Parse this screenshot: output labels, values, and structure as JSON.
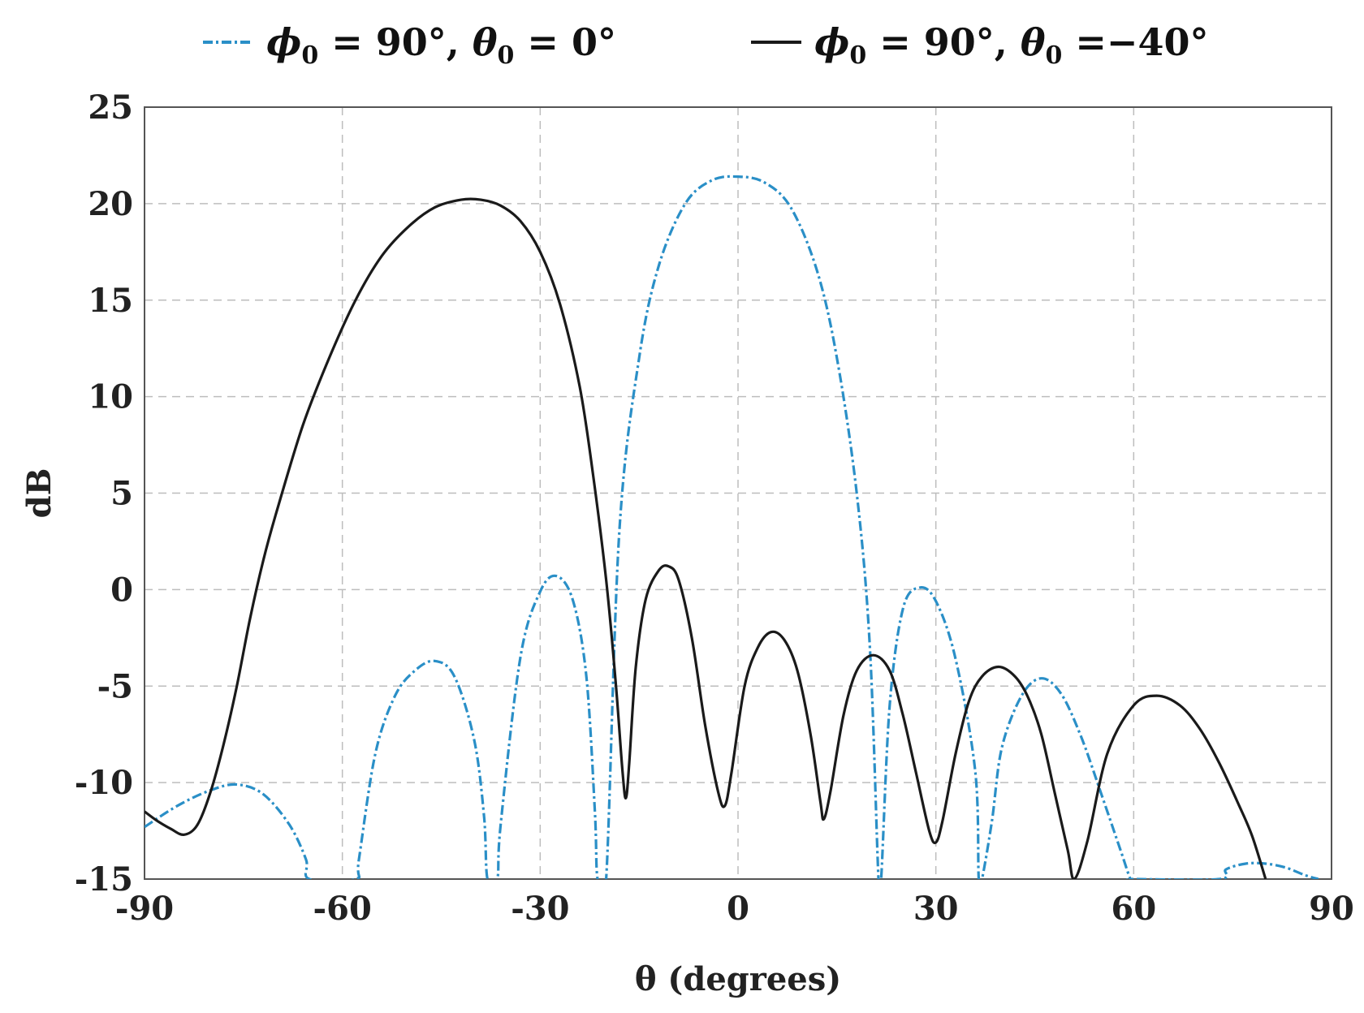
{
  "chart_data": {
    "type": "line",
    "xlabel": "θ (degrees)",
    "ylabel": "dB",
    "xlim": [
      -90,
      90
    ],
    "ylim": [
      -15,
      25
    ],
    "xticks": [
      -90,
      -60,
      -30,
      0,
      30,
      60,
      90
    ],
    "yticks": [
      25,
      20,
      15,
      10,
      5,
      0,
      -5,
      -10,
      -15
    ],
    "grid": true,
    "legend_position": "top",
    "series": [
      {
        "name": "ϕ0 = 90°, θ0 = 0°",
        "legend_parts": [
          "ϕ",
          "0",
          " = 90°, ",
          "θ",
          "0",
          " = 0°"
        ],
        "color": "#2a8fc7",
        "linestyle": "dash-dot",
        "x": [
          -90,
          -85,
          -80,
          -76,
          -72,
          -68,
          -65.5,
          -65,
          -58,
          -57.5,
          -55,
          -52,
          -49,
          -46,
          -43,
          -40,
          -38.5,
          -38,
          -36.5,
          -36,
          -33,
          -30,
          -27.5,
          -25,
          -23,
          -21.7,
          -21.3,
          -20,
          -18,
          -15,
          -12,
          -8,
          -4,
          0,
          4,
          8,
          12,
          15,
          18,
          20,
          21.3,
          21.7,
          23,
          25,
          27.5,
          30,
          33,
          36,
          36.5,
          37,
          38.5,
          40,
          43,
          46,
          49,
          52,
          55,
          58,
          59.5,
          60,
          73,
          74,
          77,
          80,
          83,
          86,
          88
        ],
        "y": [
          -12.3,
          -11.2,
          -10.4,
          -10.1,
          -10.6,
          -12.2,
          -14.0,
          -15,
          -15,
          -14.0,
          -8.5,
          -5.5,
          -4.2,
          -3.7,
          -4.5,
          -7.8,
          -11.8,
          -15,
          -15,
          -12.2,
          -3.5,
          -0.1,
          0.7,
          -0.6,
          -4.5,
          -11.5,
          -15,
          -15,
          3.0,
          12.0,
          16.8,
          20.0,
          21.2,
          21.4,
          21.1,
          19.8,
          16.5,
          12.0,
          5.0,
          -3.0,
          -15,
          -15,
          -6.0,
          -1.0,
          0.1,
          -0.6,
          -3.6,
          -9.5,
          -15,
          -15,
          -12.0,
          -8.2,
          -5.5,
          -4.6,
          -5.4,
          -7.6,
          -10.5,
          -13.5,
          -15,
          -15,
          -15,
          -14.5,
          -14.2,
          -14.2,
          -14.4,
          -14.8,
          -15
        ]
      },
      {
        "name": "ϕ0 = 90°, θ0 = −40°",
        "legend_parts": [
          "ϕ",
          "0",
          " = 90°, ",
          "θ",
          "0",
          " =−40°"
        ],
        "color": "#1a1a1a",
        "linestyle": "solid",
        "x": [
          -90,
          -88,
          -86,
          -84,
          -82,
          -80,
          -78,
          -76,
          -74,
          -72,
          -70,
          -66,
          -62,
          -58,
          -54,
          -50,
          -46,
          -42,
          -39,
          -36,
          -33,
          -30,
          -27,
          -24,
          -22,
          -20,
          -18.5,
          -17.5,
          -17,
          -16.5,
          -15.5,
          -14,
          -12,
          -10.5,
          -9,
          -7,
          -5,
          -3,
          -2,
          -1,
          1,
          3,
          5,
          7,
          9,
          11,
          12.5,
          13,
          14,
          16,
          18,
          20.5,
          23,
          25,
          27,
          29,
          30,
          31,
          33,
          35,
          37,
          39.5,
          42,
          44,
          46,
          48,
          50,
          51,
          53,
          56,
          60,
          63.5,
          67,
          70,
          73,
          76,
          78,
          80
        ],
        "y": [
          -11.5,
          -12.0,
          -12.4,
          -12.7,
          -12.2,
          -10.5,
          -8.0,
          -5.0,
          -1.5,
          1.5,
          4.0,
          8.5,
          12.0,
          15.0,
          17.3,
          18.8,
          19.8,
          20.2,
          20.2,
          19.9,
          19.1,
          17.5,
          14.8,
          10.5,
          6.0,
          0.5,
          -5.0,
          -9.5,
          -10.8,
          -9.0,
          -4.0,
          -0.5,
          1.0,
          1.2,
          0.5,
          -2.5,
          -7.0,
          -10.5,
          -11.2,
          -9.5,
          -5.0,
          -3.0,
          -2.2,
          -2.6,
          -4.2,
          -7.5,
          -11.0,
          -11.9,
          -10.5,
          -6.5,
          -4.2,
          -3.4,
          -4.2,
          -6.5,
          -9.5,
          -12.5,
          -13.1,
          -12.0,
          -8.5,
          -5.8,
          -4.5,
          -4.0,
          -4.5,
          -5.6,
          -7.5,
          -10.5,
          -13.5,
          -15,
          -13.0,
          -8.5,
          -6.0,
          -5.5,
          -6.0,
          -7.2,
          -9.0,
          -11.2,
          -12.8,
          -15
        ]
      }
    ]
  }
}
